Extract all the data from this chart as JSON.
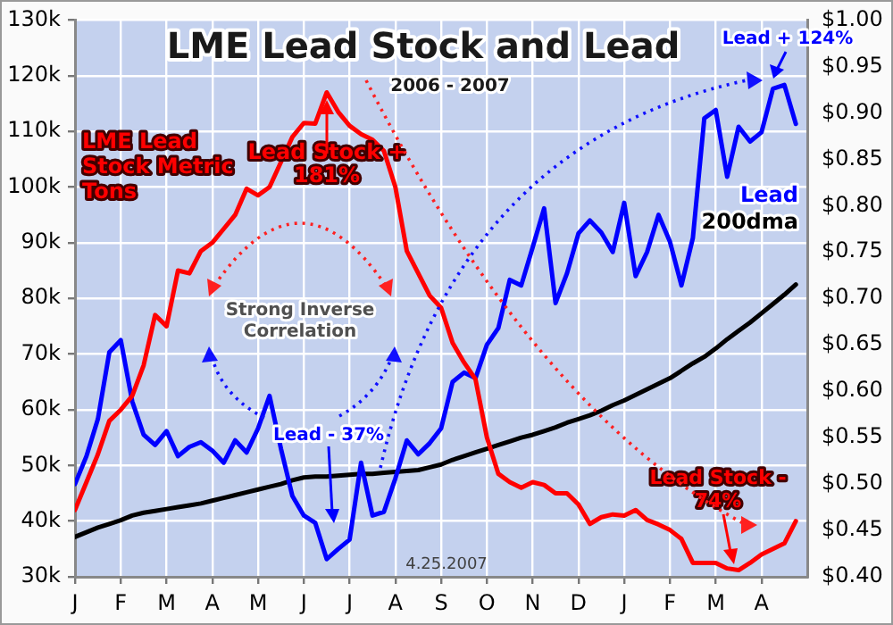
{
  "chart_data": {
    "type": "line",
    "title": "LME Lead Stock and Lead",
    "subtitle": "2006 - 2007",
    "categories": [
      "J",
      null,
      null,
      null,
      "F",
      null,
      null,
      null,
      "M",
      null,
      null,
      null,
      "A",
      null,
      null,
      null,
      "M",
      null,
      null,
      null,
      "J",
      null,
      null,
      null,
      "J",
      null,
      null,
      null,
      "A",
      null,
      null,
      null,
      "S",
      null,
      null,
      null,
      "O",
      null,
      null,
      null,
      "N",
      null,
      null,
      null,
      "D",
      null,
      null,
      null,
      "J",
      null,
      null,
      null,
      "F",
      null,
      null,
      null,
      "M",
      null,
      null,
      null,
      "A",
      null,
      null,
      null
    ],
    "ylim": [
      30000,
      130000
    ],
    "yticks": [
      {
        "value": 30000,
        "label": "30k"
      },
      {
        "value": 40000,
        "label": "40k"
      },
      {
        "value": 50000,
        "label": "50k"
      },
      {
        "value": 60000,
        "label": "60k"
      },
      {
        "value": 70000,
        "label": "70k"
      },
      {
        "value": 80000,
        "label": "80k"
      },
      {
        "value": 90000,
        "label": "90k"
      },
      {
        "value": 100000,
        "label": "100k"
      },
      {
        "value": 110000,
        "label": "110k"
      },
      {
        "value": 120000,
        "label": "120k"
      },
      {
        "value": 130000,
        "label": "130k"
      }
    ],
    "y2lim": [
      0.4,
      1.0
    ],
    "y2ticks": [
      {
        "value": 0.4,
        "label": "$0.40"
      },
      {
        "value": 0.45,
        "label": "$0.45"
      },
      {
        "value": 0.5,
        "label": "$0.50"
      },
      {
        "value": 0.55,
        "label": "$0.55"
      },
      {
        "value": 0.6,
        "label": "$0.60"
      },
      {
        "value": 0.65,
        "label": "$0.65"
      },
      {
        "value": 0.7,
        "label": "$0.70"
      },
      {
        "value": 0.75,
        "label": "$0.75"
      },
      {
        "value": 0.8,
        "label": "$0.80"
      },
      {
        "value": 0.85,
        "label": "$0.85"
      },
      {
        "value": 0.9,
        "label": "$0.90"
      },
      {
        "value": 0.95,
        "label": "$0.95"
      },
      {
        "value": 1.0,
        "label": "$1.00"
      }
    ],
    "grid": true,
    "legend": false,
    "marker": "none",
    "line_style": "solid",
    "series": [
      {
        "name": "LME Lead Stock Metric Tons",
        "color": "#ff0000",
        "values": [
          42000,
          47000,
          52000,
          58000,
          60000,
          62500,
          68000,
          77000,
          75000,
          85000,
          84500,
          88500,
          90000,
          92500,
          95000,
          99700,
          98500,
          100000,
          104500,
          109000,
          111500,
          111400,
          117000,
          113500,
          111000,
          109500,
          108500,
          106500,
          100000,
          88500,
          84500,
          80500,
          78300,
          72000,
          68500,
          65500,
          55000,
          48500,
          47000,
          46000,
          47000,
          46500,
          45000,
          45000,
          43000,
          39500,
          40700,
          41200,
          41000,
          42000,
          40200,
          39400,
          38400,
          36800,
          32500,
          32500,
          32500,
          31500,
          31200,
          32500,
          34000,
          35000,
          36000,
          40000
        ]
      },
      {
        "name": "Lead",
        "color": "#0000ff",
        "axis": "y2",
        "values": [
          0.5,
          0.53,
          0.57,
          0.642,
          0.655,
          0.589,
          0.553,
          0.542,
          0.557,
          0.53,
          0.54,
          0.545,
          0.536,
          0.523,
          0.547,
          0.534,
          0.56,
          0.595,
          0.538,
          0.487,
          0.466,
          0.458,
          0.419,
          0.43,
          0.44,
          0.523,
          0.466,
          0.47,
          0.506,
          0.547,
          0.532,
          0.544,
          0.56,
          0.61,
          0.62,
          0.614,
          0.65,
          0.668,
          0.72,
          0.714,
          0.755,
          0.797,
          0.695,
          0.727,
          0.77,
          0.784,
          0.771,
          0.75,
          0.803,
          0.724,
          0.75,
          0.79,
          0.761,
          0.714,
          0.765,
          0.894,
          0.903,
          0.831,
          0.885,
          0.869,
          0.879,
          0.926,
          0.93,
          0.888
        ]
      },
      {
        "name": "200dma",
        "color": "#000000",
        "axis": "y2",
        "values": [
          0.443,
          0.448,
          0.453,
          0.457,
          0.461,
          0.466,
          0.469,
          0.471,
          0.473,
          0.475,
          0.477,
          0.479,
          0.482,
          0.485,
          0.488,
          0.491,
          0.494,
          0.497,
          0.5,
          0.504,
          0.507,
          0.508,
          0.508,
          0.509,
          0.51,
          0.511,
          0.511,
          0.512,
          0.513,
          0.514,
          0.515,
          0.518,
          0.521,
          0.526,
          0.53,
          0.534,
          0.538,
          0.542,
          0.546,
          0.55,
          0.553,
          0.557,
          0.561,
          0.566,
          0.57,
          0.574,
          0.579,
          0.585,
          0.59,
          0.596,
          0.602,
          0.608,
          0.614,
          0.622,
          0.63,
          0.637,
          0.646,
          0.656,
          0.665,
          0.674,
          0.684,
          0.694,
          0.704,
          0.715
        ]
      }
    ],
    "annotations": [
      {
        "text": "Lead Stock + 181%",
        "y": 117000
      },
      "Strong Inverse Correlation",
      "Lead - 37%",
      "Lead + 124%",
      "Lead Stock - 74%",
      "4.25.2007"
    ]
  }
}
